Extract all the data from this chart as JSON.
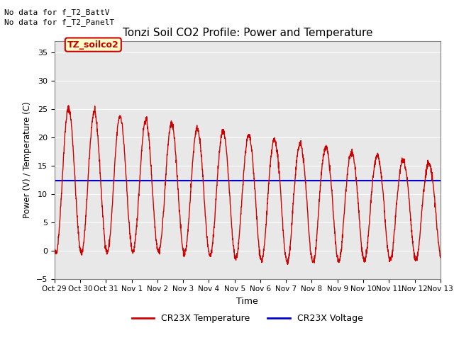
{
  "title": "Tonzi Soil CO2 Profile: Power and Temperature",
  "xlabel": "Time",
  "ylabel": "Power (V) / Temperature (C)",
  "ylim": [
    -5,
    37
  ],
  "yticks": [
    -5,
    0,
    5,
    10,
    15,
    20,
    25,
    30,
    35
  ],
  "blue_line_y": 12.3,
  "annotation_lines": [
    "No data for f_T2_BattV",
    "No data for f_T2_PanelT"
  ],
  "legend_label_box": "TZ_soilco2",
  "legend_label_red": "CR23X Temperature",
  "legend_label_blue": "CR23X Voltage",
  "background_color": "#e8e8e8",
  "red_color": "#cc0000",
  "blue_color": "#0000cc",
  "box_facecolor": "#ffffcc",
  "box_edgecolor": "#cc0000",
  "x_tick_labels": [
    "Oct 29",
    "Oct 30",
    "Oct 31",
    "Nov 1",
    "Nov 2",
    "Nov 3",
    "Nov 4",
    "Nov 5",
    "Nov 6",
    "Nov 7",
    "Nov 8",
    "Nov 9",
    "Nov 10",
    "Nov 11",
    "Nov 12",
    "Nov 13"
  ],
  "num_days": 15
}
